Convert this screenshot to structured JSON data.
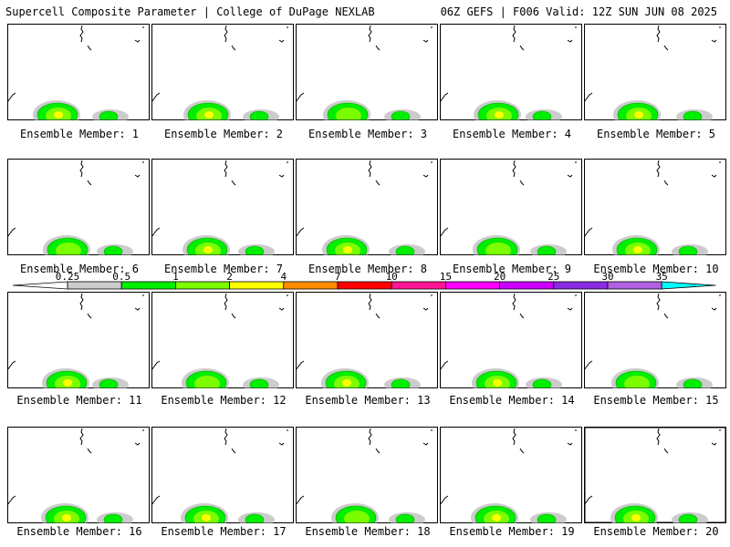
{
  "header": {
    "title_left": "Supercell Composite Parameter | College of DuPage NEXLAB",
    "title_right": "06Z GEFS | F006 Valid: 12Z SUN JUN 08 2025"
  },
  "legend": {
    "thresholds": [
      "0.25",
      "0.5",
      "1",
      "2",
      "4",
      "7",
      "10",
      "15",
      "20",
      "25",
      "30",
      "35"
    ],
    "colors": [
      "#cccccc",
      "#00ee00",
      "#7cfc00",
      "#ffff00",
      "#ff8c00",
      "#ff0000",
      "#ff1493",
      "#ff00ff",
      "#cc00ff",
      "#8a2be2",
      "#b060e0",
      "#00ffff"
    ]
  },
  "panels": [
    {
      "label": "Ensemble Member: 1"
    },
    {
      "label": "Ensemble Member: 2"
    },
    {
      "label": "Ensemble Member: 3"
    },
    {
      "label": "Ensemble Member: 4"
    },
    {
      "label": "Ensemble Member: 5"
    },
    {
      "label": "Ensemble Member: 6"
    },
    {
      "label": "Ensemble Member: 7"
    },
    {
      "label": "Ensemble Member: 8"
    },
    {
      "label": "Ensemble Member: 9"
    },
    {
      "label": "Ensemble Member: 10"
    },
    {
      "label": "Ensemble Member: 11"
    },
    {
      "label": "Ensemble Member: 12"
    },
    {
      "label": "Ensemble Member: 13"
    },
    {
      "label": "Ensemble Member: 14"
    },
    {
      "label": "Ensemble Member: 15"
    },
    {
      "label": "Ensemble Member: 16"
    },
    {
      "label": "Ensemble Member: 17"
    },
    {
      "label": "Ensemble Member: 18"
    },
    {
      "label": "Ensemble Member: 19"
    },
    {
      "label": "Ensemble Member: 20",
      "selected": true
    }
  ]
}
